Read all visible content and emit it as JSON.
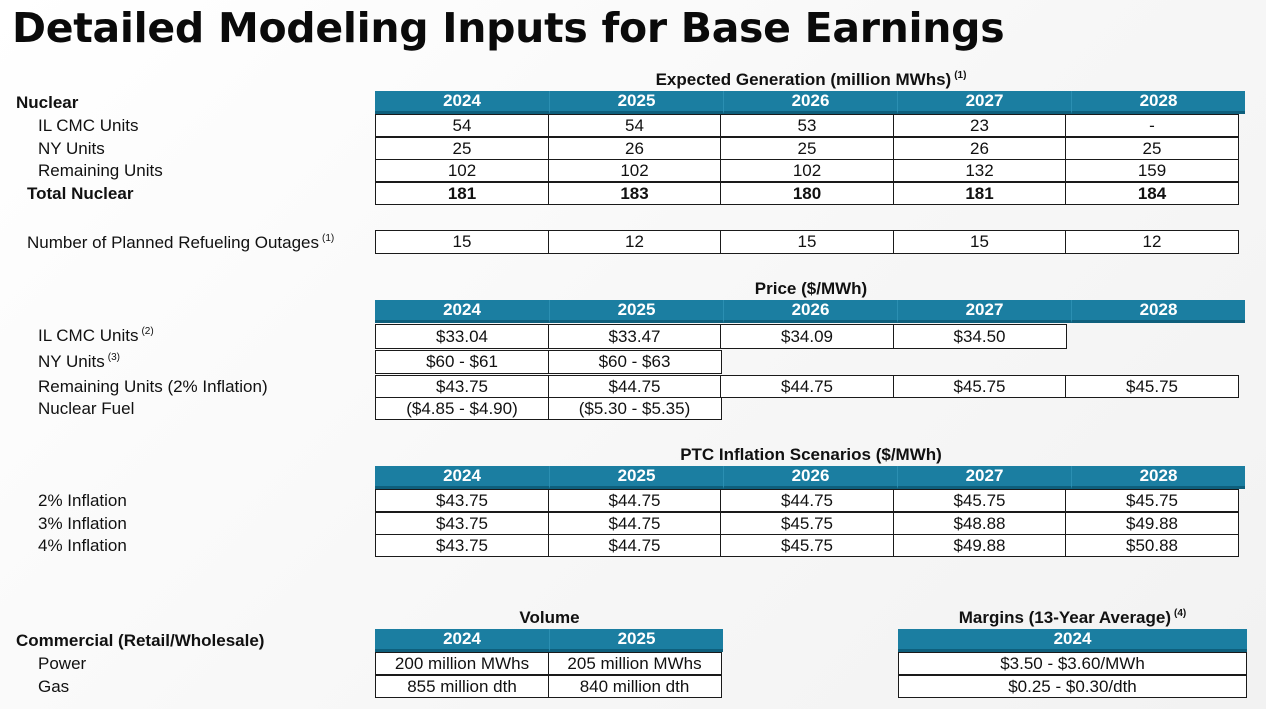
{
  "title": "Detailed Modeling Inputs for Base Earnings",
  "years": [
    "2024",
    "2025",
    "2026",
    "2027",
    "2028"
  ],
  "generation": {
    "heading": "Expected Generation (million MWhs)",
    "heading_note": "(1)",
    "group_label": "Nuclear",
    "rows": [
      {
        "label": "IL CMC Units",
        "values": [
          "54",
          "54",
          "53",
          "23",
          "-"
        ]
      },
      {
        "label": "NY Units",
        "values": [
          "25",
          "26",
          "25",
          "26",
          "25"
        ]
      },
      {
        "label": "Remaining Units",
        "values": [
          "102",
          "102",
          "102",
          "132",
          "159"
        ]
      }
    ],
    "total": {
      "label": "Total Nuclear",
      "values": [
        "181",
        "183",
        "180",
        "181",
        "184"
      ]
    }
  },
  "outages": {
    "label": "Number of Planned Refueling Outages",
    "note": "(1)",
    "values": [
      "15",
      "12",
      "15",
      "15",
      "12"
    ]
  },
  "price": {
    "heading": "Price ($/MWh)",
    "rows": [
      {
        "label": "IL CMC Units",
        "note": "(2)",
        "values": [
          "$33.04",
          "$33.47",
          "$34.09",
          "$34.50"
        ]
      },
      {
        "label": "NY Units",
        "note": "(3)",
        "values": [
          "$60 - $61",
          "$60 - $63"
        ]
      },
      {
        "label": "Remaining Units (2% Inflation)",
        "note": "",
        "values": [
          "$43.75",
          "$44.75",
          "$44.75",
          "$45.75",
          "$45.75"
        ]
      },
      {
        "label": "Nuclear Fuel",
        "note": "",
        "values": [
          "($4.85 - $4.90)",
          "($5.30 - $5.35)"
        ]
      }
    ]
  },
  "ptc": {
    "heading": "PTC Inflation Scenarios ($/MWh)",
    "rows": [
      {
        "label": "2% Inflation",
        "values": [
          "$43.75",
          "$44.75",
          "$44.75",
          "$45.75",
          "$45.75"
        ]
      },
      {
        "label": "3% Inflation",
        "values": [
          "$43.75",
          "$44.75",
          "$45.75",
          "$48.88",
          "$49.88"
        ]
      },
      {
        "label": "4% Inflation",
        "values": [
          "$43.75",
          "$44.75",
          "$45.75",
          "$49.88",
          "$50.88"
        ]
      }
    ]
  },
  "volume": {
    "heading": "Volume",
    "group_label": "Commercial (Retail/Wholesale)",
    "years": [
      "2024",
      "2025"
    ],
    "rows": [
      {
        "label": "Power",
        "values": [
          "200 million MWhs",
          "205 million MWhs"
        ]
      },
      {
        "label": "Gas",
        "values": [
          "855 million dth",
          "840 million dth"
        ]
      }
    ]
  },
  "margins": {
    "heading": "Margins (13-Year Average)",
    "heading_note": "(4)",
    "year": "2024",
    "values": [
      "$3.50 - $3.60/MWh",
      "$0.25 - $0.30/dth"
    ]
  },
  "colors": {
    "header_bg": "#1b7ea1",
    "header_text": "#ffffff"
  }
}
